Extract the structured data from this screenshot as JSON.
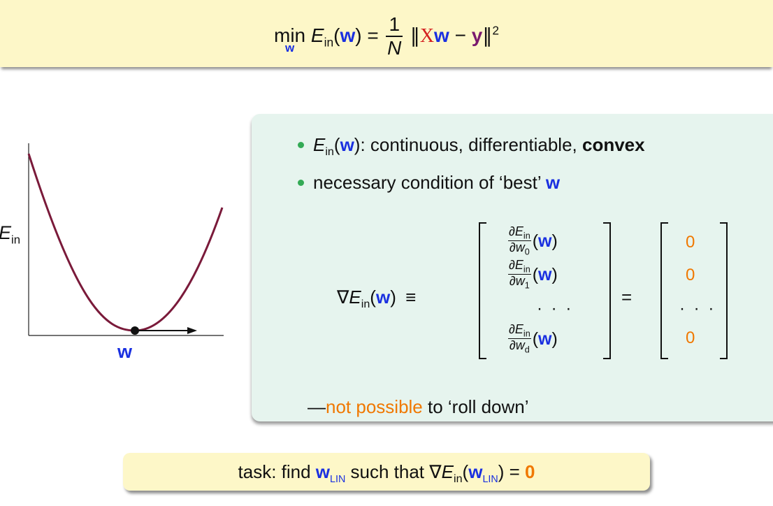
{
  "top": {
    "min": "min",
    "min_var": "w",
    "E": "E",
    "in": "in",
    "w": "w",
    "one": "1",
    "N": "N",
    "X": "X",
    "y": "y",
    "sq": "2"
  },
  "plot": {
    "ylabel_E": "E",
    "ylabel_in": "in",
    "xlabel": "w"
  },
  "bullets": {
    "b1_E": "E",
    "b1_in": "in",
    "b1_w": "w",
    "b1_text": ": continuous, differentiable, ",
    "b1_bold": "convex",
    "b2_text": "necessary condition of ‘best’ ",
    "b2_w": "w"
  },
  "gradient": {
    "nabla": "∇",
    "E": "E",
    "in": "in",
    "w": "w",
    "equiv": "≡",
    "equals": "=",
    "entries": [
      {
        "num_E": "∂E",
        "num_in": "in",
        "den": "∂w",
        "den_sub": "0",
        "w": "w"
      },
      {
        "num_E": "∂E",
        "num_in": "in",
        "den": "∂w",
        "den_sub": "1",
        "w": "w"
      },
      {
        "num_E": "∂E",
        "num_in": "in",
        "den": "∂w",
        "den_sub": "d",
        "w": "w"
      }
    ],
    "dots": "· · ·",
    "zeros": [
      "0",
      "0",
      "0"
    ]
  },
  "note": {
    "dash": "—",
    "highlight": "not possible",
    "rest": " to ‘roll down’"
  },
  "task": {
    "prefix": "task: find ",
    "w": "w",
    "lin": "LIN",
    "middle": " such that ",
    "nabla": "∇",
    "E": "E",
    "in": "in",
    "eq": " = ",
    "zero": "0"
  },
  "colors": {
    "top_bg": "#fdf7c8",
    "green_box_bg": "#e6f4ee",
    "curve": "#7a1a3a",
    "blue": "#1a30e0",
    "orange": "#f07800"
  }
}
